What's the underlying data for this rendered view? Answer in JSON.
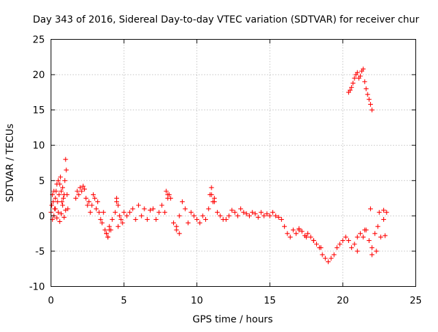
{
  "chart_data": {
    "type": "scatter",
    "title": "Day 343 of 2016, Sidereal Day-to-day VTEC variation (SDTVAR) for receiver chur",
    "xlabel": "GPS time / hours",
    "ylabel": "SDTVAR / TECUs",
    "xlim": [
      0,
      25
    ],
    "ylim": [
      -10,
      25
    ],
    "xticks": [
      0,
      5,
      10,
      15,
      20,
      25
    ],
    "xtick_labels": [
      "0",
      "5",
      "10",
      "15",
      "20",
      "25"
    ],
    "yticks": [
      -10,
      -5,
      0,
      5,
      10,
      15,
      20,
      25
    ],
    "ytick_labels": [
      "-10",
      "-5",
      "0",
      "5",
      "10",
      "15",
      "20",
      "25"
    ],
    "grid": true,
    "marker": "plus",
    "color": "#ff0000",
    "series": [
      {
        "name": "SDTVAR",
        "x": [
          0.0,
          0.05,
          0.1,
          0.15,
          0.2,
          0.25,
          0.3,
          0.35,
          0.4,
          0.45,
          0.5,
          0.55,
          0.6,
          0.65,
          0.7,
          0.75,
          0.8,
          0.85,
          0.9,
          0.95,
          1.0,
          1.05,
          1.1,
          1.15,
          0.1,
          0.2,
          0.3,
          0.4,
          0.5,
          0.6,
          0.7,
          0.8,
          0.9,
          1.0,
          1.7,
          1.8,
          1.9,
          2.0,
          2.1,
          2.2,
          2.3,
          2.4,
          2.5,
          2.6,
          2.7,
          2.8,
          2.9,
          3.0,
          3.1,
          3.2,
          3.3,
          3.4,
          3.5,
          3.6,
          3.7,
          3.8,
          3.9,
          4.0,
          4.1,
          4.2,
          4.4,
          4.5,
          4.6,
          4.7,
          4.8,
          4.9,
          5.0,
          5.2,
          5.4,
          5.6,
          5.8,
          6.0,
          6.2,
          6.4,
          6.6,
          6.8,
          7.0,
          7.2,
          7.4,
          7.6,
          7.8,
          8.0,
          8.2,
          8.4,
          8.6,
          8.8,
          9.0,
          9.2,
          9.4,
          9.6,
          9.8,
          10.0,
          10.2,
          10.4,
          10.6,
          10.8,
          11.0,
          11.2,
          11.4,
          11.6,
          11.8,
          12.0,
          12.2,
          12.4,
          12.6,
          12.8,
          13.0,
          13.2,
          13.4,
          13.6,
          13.8,
          14.0,
          14.2,
          14.4,
          14.6,
          14.8,
          15.0,
          15.2,
          15.4,
          15.6,
          15.8,
          16.0,
          16.2,
          16.4,
          16.6,
          16.8,
          17.0,
          17.2,
          17.4,
          17.6,
          17.8,
          18.0,
          18.2,
          18.4,
          18.6,
          18.8,
          19.0,
          19.2,
          19.4,
          19.6,
          19.8,
          20.0,
          20.2,
          20.4,
          20.6,
          20.8,
          21.0,
          21.2,
          21.4,
          21.6,
          21.8,
          22.0,
          22.2,
          22.4,
          22.6,
          22.8,
          23.0,
          20.4,
          20.5,
          20.6,
          20.7,
          20.8,
          20.9,
          21.0,
          21.1,
          21.2,
          21.3,
          21.4,
          21.5,
          21.6,
          21.7,
          21.8,
          21.9,
          22.0,
          3.8,
          3.9,
          4.0,
          4.5,
          4.6,
          7.9,
          8.0,
          8.1,
          8.6,
          8.8,
          10.9,
          11.0,
          11.1,
          11.2,
          17.0,
          17.5,
          18.0,
          18.5,
          21.0,
          21.5,
          21.9,
          22.0,
          22.3,
          22.5,
          22.8,
          22.9
        ],
        "y": [
          0.5,
          1.5,
          3.0,
          2.0,
          3.5,
          1.0,
          2.5,
          3.5,
          4.5,
          2.0,
          5.0,
          3.0,
          4.5,
          5.5,
          3.5,
          2.0,
          4.0,
          2.5,
          3.0,
          5.0,
          8.0,
          6.5,
          3.0,
          1.0,
          -0.5,
          0.0,
          1.0,
          -0.3,
          0.5,
          -0.8,
          0.3,
          1.5,
          -0.2,
          0.8,
          2.5,
          3.5,
          3.0,
          4.0,
          3.5,
          4.2,
          3.8,
          2.5,
          1.5,
          2.0,
          0.5,
          1.5,
          3.0,
          2.5,
          1.0,
          2.0,
          0.5,
          -0.5,
          -1.0,
          0.5,
          -2.0,
          -2.5,
          -3.0,
          -1.5,
          -2.0,
          -0.5,
          0.5,
          2.0,
          -1.5,
          0.0,
          -0.5,
          -1.0,
          0.5,
          0.0,
          0.5,
          1.0,
          -0.5,
          1.5,
          0.0,
          1.0,
          -0.5,
          0.8,
          1.0,
          -0.5,
          0.5,
          1.5,
          0.5,
          3.0,
          2.5,
          -1.0,
          -2.0,
          0.0,
          2.0,
          1.0,
          -1.0,
          0.5,
          0.0,
          -0.5,
          -1.0,
          0.0,
          -0.5,
          1.0,
          3.0,
          2.0,
          0.5,
          0.0,
          -0.5,
          -0.5,
          0.0,
          0.8,
          0.5,
          0.0,
          1.0,
          0.5,
          0.3,
          0.0,
          0.5,
          0.3,
          -0.2,
          0.5,
          0.0,
          0.3,
          0.0,
          0.5,
          0.0,
          -0.2,
          -0.5,
          -1.5,
          -2.5,
          -3.0,
          -2.0,
          -2.5,
          -1.8,
          -2.2,
          -2.8,
          -2.5,
          -3.0,
          -3.5,
          -4.0,
          -4.5,
          -5.5,
          -6.0,
          -6.5,
          -6.0,
          -5.5,
          -4.5,
          -4.0,
          -3.5,
          -3.0,
          -3.5,
          -4.5,
          -4.0,
          -3.0,
          -2.5,
          -3.0,
          -2.0,
          -3.5,
          -4.5,
          -2.5,
          -1.5,
          -3.0,
          -0.5,
          0.5,
          17.5,
          17.8,
          18.2,
          18.8,
          19.5,
          20.0,
          20.3,
          19.5,
          19.8,
          20.5,
          20.8,
          19.0,
          18.0,
          17.2,
          16.5,
          15.8,
          15.0,
          -2.5,
          -3.0,
          -2.0,
          2.5,
          1.5,
          3.5,
          2.5,
          3.0,
          -1.5,
          -2.5,
          3.0,
          4.0,
          2.0,
          2.5,
          -2.0,
          -3.0,
          -3.5,
          -4.5,
          -5.0,
          -2.0,
          1.0,
          -5.5,
          -5.0,
          0.5,
          0.8,
          -2.8
        ]
      }
    ]
  }
}
